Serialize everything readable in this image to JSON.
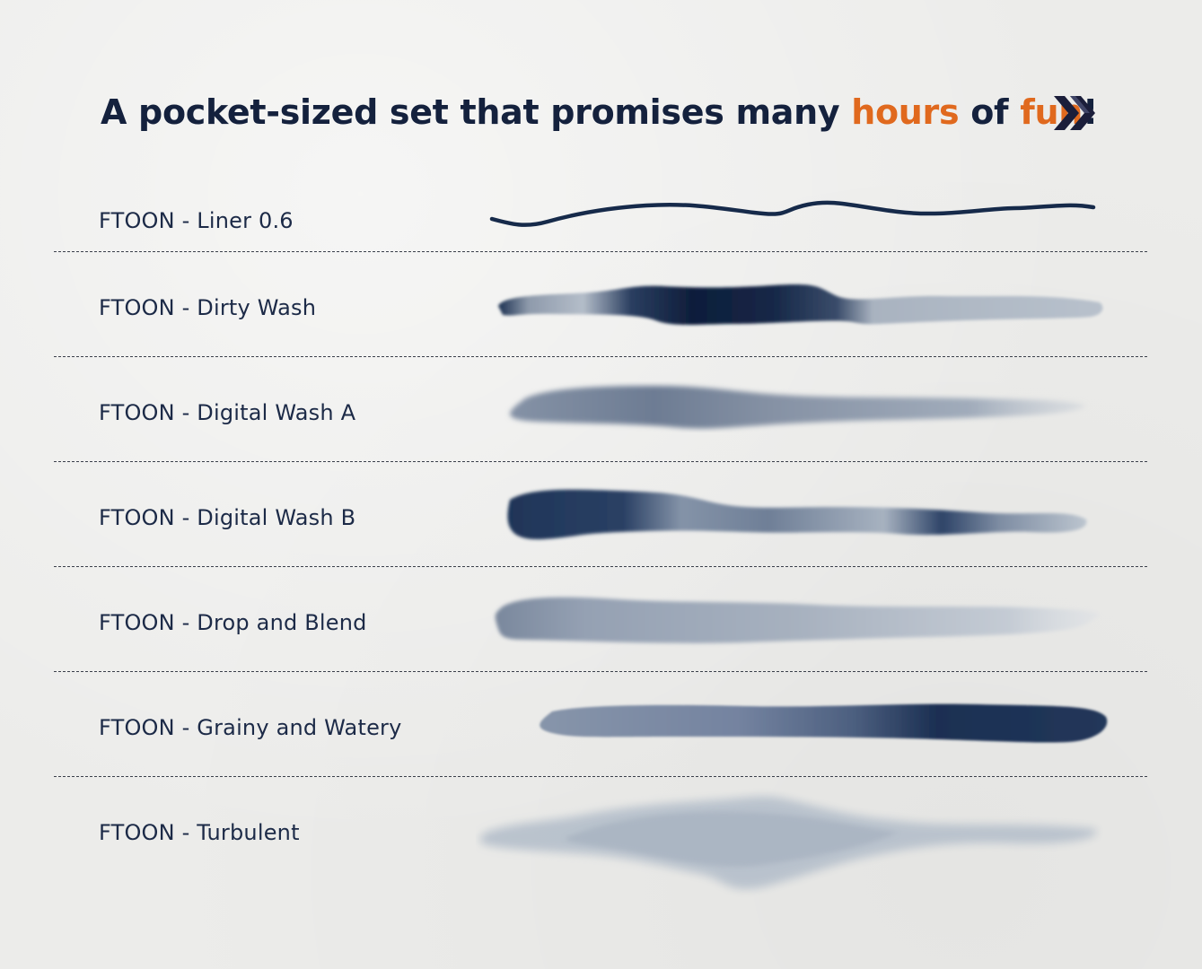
{
  "headline": {
    "part1": "A pocket-sized set that promises many ",
    "accent1": "hours",
    "part2": " of ",
    "accent2": "fun",
    "part3": "!"
  },
  "icons": {
    "next": "double-chevron-right-icon"
  },
  "colors": {
    "ink": "#14213d",
    "accent": "#e0691e",
    "paper": "#ececea",
    "brush_dark": "#142645",
    "brush_light": "#b5bfcb"
  },
  "brushes": [
    {
      "name": "FTOON - Liner 0.6"
    },
    {
      "name": "FTOON - Dirty Wash"
    },
    {
      "name": "FTOON - Digital Wash A"
    },
    {
      "name": "FTOON - Digital Wash B"
    },
    {
      "name": "FTOON - Drop and Blend"
    },
    {
      "name": "FTOON - Grainy and Watery"
    },
    {
      "name": "FTOON - Turbulent"
    }
  ]
}
